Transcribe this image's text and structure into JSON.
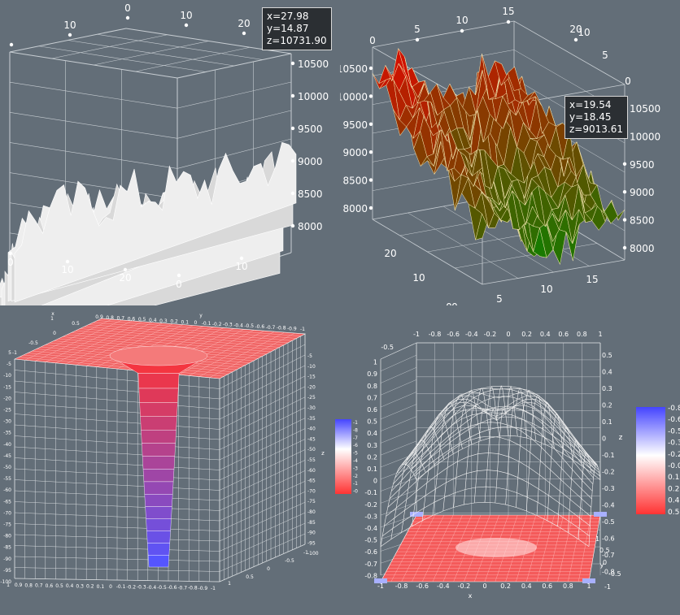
{
  "chart_data": [
    {
      "type": "surface3d",
      "style": "white-solid",
      "x_ticks": [
        "0",
        "10",
        "20"
      ],
      "y_ticks": [
        "0",
        "10",
        "20"
      ],
      "depth_ticks_front": [
        "0",
        "10",
        "20"
      ],
      "depth_ticks_side": [
        "0",
        "10"
      ],
      "z_ticks": [
        "10500",
        "10000",
        "9500",
        "9000",
        "8500",
        "8000"
      ],
      "zlim": [
        7800,
        10800
      ],
      "tooltip": {
        "x": "x=27.98",
        "y": "y=14.87",
        "z": "z=10731.90"
      },
      "surface_color": "#e8e8e8"
    },
    {
      "type": "surface3d",
      "style": "green-red-gradient",
      "top_ticks": [
        "5",
        "10",
        "15",
        "20"
      ],
      "right_ticks": [
        "0",
        "5",
        "10"
      ],
      "left_z_ticks": [
        "10500",
        "10000",
        "9500",
        "9000",
        "8500",
        "8000"
      ],
      "right_z_ticks": [
        "10500",
        "10000",
        "9500",
        "9000",
        "8500",
        "8000"
      ],
      "bottom_x_ticks": [
        "0",
        "5",
        "10",
        "15"
      ],
      "bottom_depth_ticks": [
        "0",
        "10",
        "20"
      ],
      "zlim": [
        7800,
        10700
      ],
      "tooltip": {
        "x": "x=19.54",
        "y": "y=18.45",
        "z": "z=9013.61"
      },
      "color_low": "#008800",
      "color_high": "#ee0000"
    },
    {
      "type": "surface3d",
      "style": "funnel",
      "x_ticks": [
        "1",
        "0.9",
        "0.8",
        "0.7",
        "0.6",
        "0.5",
        "0.4",
        "0.3",
        "0.2",
        "0.1",
        "0",
        "-0.1",
        "-0.2",
        "-0.3",
        "-0.4",
        "-0.5",
        "-0.6",
        "-0.7",
        "-0.8",
        "-0.9",
        "-1"
      ],
      "top_ticks": [
        "0.9",
        "0.8",
        "0.7",
        "0.6",
        "0.5",
        "0.4",
        "0.3",
        "0.2",
        "0.1",
        "0",
        "-0.1",
        "-0.2",
        "-0.3",
        "-0.4",
        "-0.5",
        "-0.6",
        "-0.7",
        "-0.8",
        "-0.9",
        "-1"
      ],
      "z_ticks": [
        "-5",
        "-10",
        "-15",
        "-20",
        "-25",
        "-30",
        "-35",
        "-40",
        "-45",
        "-50",
        "-55",
        "-60",
        "-65",
        "-70",
        "-75",
        "-80",
        "-85",
        "-90",
        "-95",
        "-100"
      ],
      "left_z_ticks": [
        "5",
        "-5",
        "-10",
        "-15",
        "-20",
        "-25",
        "-30",
        "-35",
        "-40",
        "-45",
        "-50",
        "-55",
        "-60",
        "-65",
        "-70",
        "-75",
        "-80",
        "-85",
        "-90",
        "-95",
        "-100"
      ],
      "axis_labels": {
        "x": "x",
        "y": "y",
        "z": "z"
      },
      "top_side_ticks": [
        "1",
        "0.5",
        "0",
        "-0.5",
        "-1"
      ],
      "depth_ticks": [
        "1",
        "0.5",
        "0",
        "-0.5",
        "-1"
      ],
      "zlim": [
        -100,
        0
      ],
      "colorbar": {
        "labels": [
          "-100",
          "-88.9",
          "-77.9",
          "-66.8",
          "-55.8",
          "-44.7",
          "-33.7",
          "-22.6",
          "-11.6",
          "-0.5"
        ],
        "color_low": "#5555ff",
        "color_high": "#ff3333"
      }
    },
    {
      "type": "surface3d",
      "style": "wireframe-with-projection",
      "x_ticks": [
        "-1",
        "-0.8",
        "-0.6",
        "-0.4",
        "-0.2",
        "0",
        "0.2",
        "0.4",
        "0.6",
        "0.8",
        "1"
      ],
      "top_ticks": [
        "-1",
        "-0.8",
        "-0.6",
        "-0.4",
        "-0.2",
        "0",
        "0.2",
        "0.4",
        "0.6",
        "0.8",
        "1"
      ],
      "y_ticks": [
        "-1",
        "-0.5",
        "0",
        "0.5",
        "1"
      ],
      "z_ticks": [
        "0.5",
        "0.4",
        "0.3",
        "0.2",
        "0.1",
        "0",
        "-0.1",
        "-0.2",
        "-0.3",
        "-0.4",
        "-0.5",
        "-0.6",
        "-0.7",
        "-0.8"
      ],
      "left_z_ticks": [
        "-0.5",
        "1",
        "0.9",
        "0.8",
        "0.7",
        "0.6",
        "0.5",
        "0.4",
        "0.3",
        "0.2",
        "0.1",
        "0",
        "-0.1",
        "-0.2",
        "-0.3",
        "-0.4",
        "-0.5",
        "-0.6",
        "-0.7",
        "-0.8"
      ],
      "axis_labels": {
        "x": "x",
        "y": "y",
        "z": "z"
      },
      "zlim": [
        -0.83,
        0.56
      ],
      "colorbar": {
        "labels": [
          "-0.83",
          "-0.68",
          "-0.52",
          "-0.37",
          "-0.21",
          "-0.06",
          "0.1",
          "0.25",
          "0.4",
          "0.56"
        ],
        "color_low": "#4444ff",
        "color_high": "#ff3333"
      }
    }
  ]
}
